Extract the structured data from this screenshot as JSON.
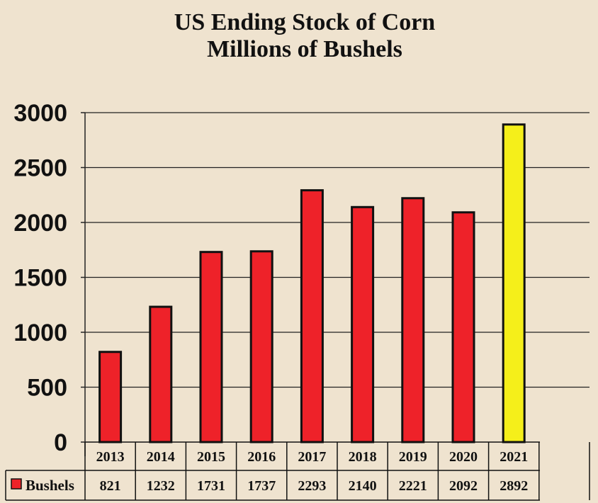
{
  "chart_data": {
    "type": "bar",
    "title": "US Ending Stock of Corn",
    "subtitle": "Millions of Bushels",
    "categories": [
      "2013",
      "2014",
      "2015",
      "2016",
      "2017",
      "2018",
      "2019",
      "2020",
      "2021"
    ],
    "series": [
      {
        "name": "Bushels",
        "values": [
          821,
          1232,
          1731,
          1737,
          2293,
          2140,
          2221,
          2092,
          2892
        ]
      }
    ],
    "highlight": {
      "category": "2021",
      "color": "#f5ef1a"
    },
    "bar_color": "#ee2229",
    "yticks": [
      0,
      500,
      1000,
      1500,
      2000,
      2500,
      3000
    ],
    "ylim": [
      0,
      3000
    ],
    "grid": true,
    "legend": "data-table",
    "background": "#efe3cf"
  }
}
